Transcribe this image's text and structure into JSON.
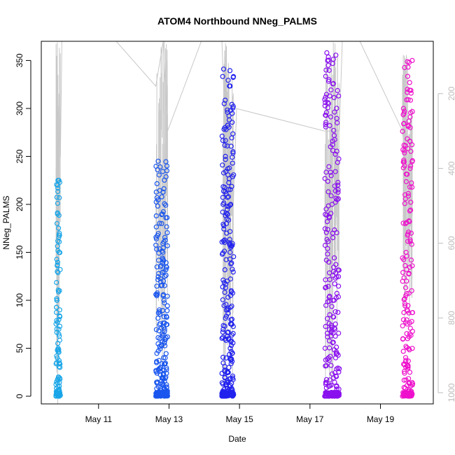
{
  "chart_data": {
    "type": "scatter",
    "title": "ATOM4 Northbound NNeg_PALMS",
    "xlabel": "Date",
    "ylabel": "NNeg_PALMS",
    "x_unit": "date",
    "xlim": [
      "2016-05-09T09:00",
      "2016-05-20T12:00"
    ],
    "ylim": [
      -8,
      370
    ],
    "y_ticks": [
      0,
      50,
      100,
      150,
      200,
      250,
      300,
      350
    ],
    "x_ticks": [
      {
        "date": "2016-05-11",
        "label": "May 11"
      },
      {
        "date": "2016-05-13",
        "label": "May 13"
      },
      {
        "date": "2016-05-15",
        "label": "May 15"
      },
      {
        "date": "2016-05-17",
        "label": "May 17"
      },
      {
        "date": "2016-05-19",
        "label": "May 19"
      }
    ],
    "y2_axis": {
      "side": "right",
      "reversed": true,
      "ticks": [
        200,
        400,
        600,
        800,
        1000
      ],
      "lim": [
        60,
        1030
      ],
      "color": "#bdbdbd"
    },
    "grid": false,
    "legend": "none",
    "marker": "open-circle",
    "colors": {
      "low_date": "#1aa6e8",
      "mid_date": "#2222ee",
      "high_date": "#ee11cc",
      "secondary_line": "#c8c8c8",
      "axis": "#000000",
      "secondary_axis": "#bdbdbd"
    },
    "clusters": [
      {
        "start": "2016-05-09T19:00",
        "end": "2016-05-09T22:00",
        "color": "#1aa6e8",
        "n": 120,
        "sample_points": [
          [
            0.0,
            0
          ],
          [
            0.05,
            2
          ],
          [
            0.1,
            5
          ],
          [
            0.15,
            35
          ],
          [
            0.2,
            70
          ],
          [
            0.25,
            100
          ],
          [
            0.3,
            130
          ],
          [
            0.35,
            190
          ],
          [
            0.4,
            220
          ],
          [
            0.45,
            225
          ],
          [
            0.5,
            50
          ],
          [
            0.55,
            20
          ],
          [
            0.6,
            0
          ],
          [
            0.65,
            80
          ],
          [
            0.7,
            150
          ],
          [
            0.75,
            170
          ],
          [
            0.8,
            110
          ],
          [
            0.85,
            90
          ],
          [
            0.9,
            30
          ],
          [
            0.95,
            132
          ]
        ]
      },
      {
        "start": "2016-05-12T15:00",
        "end": "2016-05-12T23:00",
        "color": "#1a56ee",
        "n": 260,
        "sample_points": [
          [
            0.0,
            0
          ],
          [
            0.05,
            164
          ],
          [
            0.1,
            207
          ],
          [
            0.15,
            236
          ],
          [
            0.2,
            245
          ],
          [
            0.25,
            128
          ],
          [
            0.3,
            90
          ],
          [
            0.35,
            60
          ],
          [
            0.4,
            30
          ],
          [
            0.45,
            10
          ],
          [
            0.5,
            180
          ],
          [
            0.55,
            190
          ],
          [
            0.6,
            150
          ],
          [
            0.65,
            120
          ],
          [
            0.7,
            100
          ],
          [
            0.75,
            70
          ],
          [
            0.8,
            40
          ],
          [
            0.85,
            20
          ],
          [
            0.9,
            5
          ],
          [
            0.95,
            240
          ]
        ]
      },
      {
        "start": "2016-05-14T12:00",
        "end": "2016-05-14T20:00",
        "color": "#2222ee",
        "n": 300,
        "sample_points": [
          [
            0.0,
            0
          ],
          [
            0.05,
            241
          ],
          [
            0.1,
            200
          ],
          [
            0.15,
            341
          ],
          [
            0.2,
            305
          ],
          [
            0.25,
            280
          ],
          [
            0.3,
            250
          ],
          [
            0.35,
            278
          ],
          [
            0.4,
            170
          ],
          [
            0.45,
            120
          ],
          [
            0.5,
            90
          ],
          [
            0.55,
            60
          ],
          [
            0.6,
            30
          ],
          [
            0.65,
            10
          ],
          [
            0.7,
            150
          ],
          [
            0.75,
            200
          ],
          [
            0.8,
            110
          ],
          [
            0.85,
            75
          ],
          [
            0.9,
            45
          ],
          [
            0.95,
            255
          ]
        ]
      },
      {
        "start": "2016-05-17T10:00",
        "end": "2016-05-17T20:00",
        "color": "#8a10ee",
        "n": 300,
        "sample_points": [
          [
            0.0,
            0
          ],
          [
            0.05,
            293
          ],
          [
            0.1,
            340
          ],
          [
            0.15,
            358
          ],
          [
            0.2,
            350
          ],
          [
            0.25,
            345
          ],
          [
            0.3,
            330
          ],
          [
            0.35,
            313
          ],
          [
            0.4,
            260
          ],
          [
            0.45,
            230
          ],
          [
            0.5,
            200
          ],
          [
            0.55,
            170
          ],
          [
            0.6,
            130
          ],
          [
            0.65,
            100
          ],
          [
            0.7,
            70
          ],
          [
            0.75,
            40
          ],
          [
            0.8,
            10
          ],
          [
            0.85,
            285
          ],
          [
            0.9,
            220
          ],
          [
            0.95,
            313
          ]
        ]
      },
      {
        "start": "2016-05-19T15:00",
        "end": "2016-05-19T22:00",
        "color": "#ee11cc",
        "n": 220,
        "sample_points": [
          [
            0.0,
            0
          ],
          [
            0.05,
            257
          ],
          [
            0.1,
            300
          ],
          [
            0.15,
            295
          ],
          [
            0.2,
            256
          ],
          [
            0.25,
            210
          ],
          [
            0.3,
            180
          ],
          [
            0.35,
            150
          ],
          [
            0.4,
            120
          ],
          [
            0.45,
            90
          ],
          [
            0.5,
            60
          ],
          [
            0.55,
            30
          ],
          [
            0.6,
            5
          ],
          [
            0.65,
            348
          ],
          [
            0.7,
            327
          ],
          [
            0.75,
            280
          ],
          [
            0.8,
            240
          ],
          [
            0.85,
            170
          ],
          [
            0.9,
            110
          ],
          [
            0.95,
            350
          ]
        ]
      }
    ],
    "secondary_series": {
      "name": "",
      "points": [
        [
          "2016-05-09T19:00",
          400
        ],
        [
          "2016-05-09T20:00",
          800
        ],
        [
          "2016-05-09T21:00",
          200
        ],
        [
          "2016-05-09T22:00",
          370
        ],
        [
          "2016-05-09T23:00",
          60
        ],
        [
          "2016-05-11T12:00",
          60
        ],
        [
          "2016-05-12T15:00",
          180
        ],
        [
          "2016-05-12T20:00",
          60
        ],
        [
          "2016-05-12T23:00",
          300
        ],
        [
          "2016-05-13T22:00",
          60
        ],
        [
          "2016-05-14T12:00",
          60
        ],
        [
          "2016-05-14T18:00",
          700
        ],
        [
          "2016-05-14T22:00",
          240
        ],
        [
          "2016-05-17T10:00",
          300
        ],
        [
          "2016-05-17T20:00",
          300
        ],
        [
          "2016-05-17T22:00",
          60
        ],
        [
          "2016-05-18T10:00",
          60
        ],
        [
          "2016-05-19T15:00",
          300
        ],
        [
          "2016-05-19T22:00",
          600
        ]
      ]
    }
  }
}
